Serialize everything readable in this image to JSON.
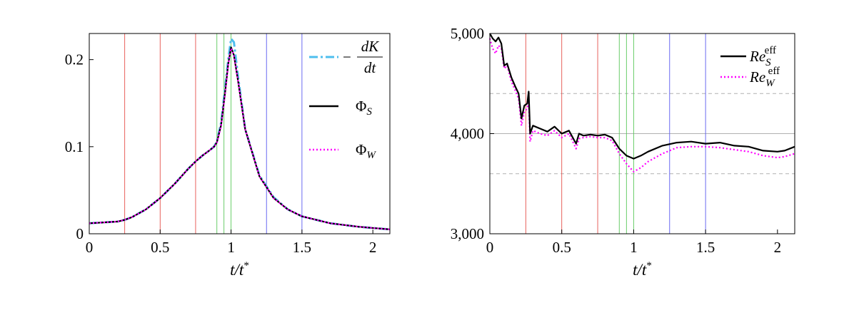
{
  "colors": {
    "dkdt": "#4dbeee",
    "phi_s": "#000000",
    "phi_w": "#ff00ff",
    "re_s": "#000000",
    "re_w": "#ff00ff",
    "vline_red": "#e6504b",
    "vline_green": "#5bc85b",
    "vline_blue": "#5a5af0",
    "ref_line": "#b0b0b0"
  },
  "chart_data": [
    {
      "type": "line",
      "xlabel": "t/t*",
      "xlim": [
        0,
        2.12
      ],
      "ylim": [
        0,
        0.23
      ],
      "xticks": [
        0,
        0.5,
        1,
        1.5,
        2
      ],
      "xtick_labels": [
        "0",
        "0.5",
        "1",
        "1.5",
        "2"
      ],
      "yticks": [
        0,
        0.1,
        0.2
      ],
      "ytick_labels": [
        "0",
        "0.1",
        "0.2"
      ],
      "legend_position": "top-right",
      "vertical_lines": {
        "red": [
          0.25,
          0.5,
          0.75
        ],
        "green": [
          0.9,
          0.95,
          1.0
        ],
        "blue": [
          1.25,
          1.5,
          2.12
        ]
      },
      "x": [
        0,
        0.1,
        0.2,
        0.25,
        0.3,
        0.4,
        0.5,
        0.6,
        0.7,
        0.75,
        0.8,
        0.85,
        0.88,
        0.9,
        0.93,
        0.96,
        0.98,
        1.0,
        1.02,
        1.05,
        1.1,
        1.2,
        1.3,
        1.4,
        1.5,
        1.7,
        1.9,
        2.12
      ],
      "series": [
        {
          "name": "−dK/dt",
          "legend_main": "−",
          "legend_num": "dK",
          "legend_den": "dt",
          "style": "dash-dot",
          "values": [
            0.012,
            0.013,
            0.014,
            0.016,
            0.019,
            0.028,
            0.041,
            0.057,
            0.075,
            0.083,
            0.09,
            0.096,
            0.1,
            0.106,
            0.128,
            0.17,
            0.2,
            0.224,
            0.22,
            0.18,
            0.12,
            0.067,
            0.042,
            0.028,
            0.02,
            0.012,
            0.008,
            0.005
          ]
        },
        {
          "name": "ΦS",
          "legend_main": "Φ",
          "legend_sub": "S",
          "style": "solid",
          "values": [
            0.012,
            0.013,
            0.014,
            0.016,
            0.019,
            0.028,
            0.041,
            0.057,
            0.075,
            0.083,
            0.09,
            0.096,
            0.1,
            0.105,
            0.125,
            0.165,
            0.195,
            0.214,
            0.205,
            0.175,
            0.12,
            0.066,
            0.041,
            0.028,
            0.02,
            0.012,
            0.008,
            0.005
          ]
        },
        {
          "name": "ΦW",
          "legend_main": "Φ",
          "legend_sub": "W",
          "style": "dotted",
          "values": [
            0.012,
            0.013,
            0.014,
            0.016,
            0.019,
            0.028,
            0.041,
            0.057,
            0.075,
            0.083,
            0.09,
            0.096,
            0.1,
            0.104,
            0.124,
            0.163,
            0.194,
            0.213,
            0.205,
            0.175,
            0.12,
            0.066,
            0.041,
            0.028,
            0.02,
            0.012,
            0.008,
            0.005
          ]
        }
      ]
    },
    {
      "type": "line",
      "xlabel": "t/t*",
      "xlim": [
        0,
        2.12
      ],
      "ylim": [
        3000,
        5000
      ],
      "xticks": [
        0,
        0.5,
        1,
        1.5,
        2
      ],
      "xtick_labels": [
        "0",
        "0.5",
        "1",
        "1.5",
        "2"
      ],
      "yticks": [
        3000,
        4000,
        5000
      ],
      "ytick_labels": [
        "3,000",
        "4,000",
        "5,000"
      ],
      "legend_position": "top-right",
      "reference_lines": {
        "solid": [
          4000
        ],
        "dashed": [
          4400,
          3600
        ]
      },
      "vertical_lines": {
        "red": [
          0.25,
          0.5,
          0.75
        ],
        "green": [
          0.9,
          0.95,
          1.0
        ],
        "blue": [
          1.25,
          1.5
        ]
      },
      "series": [
        {
          "name": "ReSeff",
          "legend_main": "Re",
          "legend_sub": "S",
          "legend_sup": "eff",
          "style": "solid",
          "x": [
            0,
            0.02,
            0.04,
            0.06,
            0.08,
            0.1,
            0.12,
            0.15,
            0.18,
            0.2,
            0.22,
            0.24,
            0.26,
            0.27,
            0.28,
            0.3,
            0.35,
            0.4,
            0.45,
            0.5,
            0.55,
            0.6,
            0.62,
            0.65,
            0.7,
            0.75,
            0.8,
            0.85,
            0.9,
            0.95,
            1.0,
            1.05,
            1.1,
            1.2,
            1.3,
            1.4,
            1.5,
            1.6,
            1.7,
            1.8,
            1.9,
            2.0,
            2.05,
            2.12
          ],
          "values": [
            5000,
            4950,
            4920,
            4960,
            4900,
            4680,
            4700,
            4560,
            4460,
            4400,
            4150,
            4280,
            4300,
            4420,
            4000,
            4080,
            4050,
            4020,
            4070,
            4000,
            4030,
            3900,
            4000,
            3980,
            3990,
            3980,
            3990,
            3960,
            3850,
            3780,
            3750,
            3780,
            3820,
            3880,
            3910,
            3920,
            3900,
            3910,
            3880,
            3870,
            3830,
            3820,
            3830,
            3870
          ]
        },
        {
          "name": "ReWeff",
          "legend_main": "Re",
          "legend_sub": "W",
          "legend_sup": "eff",
          "style": "dotted",
          "x": [
            0,
            0.02,
            0.04,
            0.06,
            0.08,
            0.1,
            0.12,
            0.15,
            0.18,
            0.2,
            0.22,
            0.24,
            0.26,
            0.27,
            0.28,
            0.3,
            0.35,
            0.4,
            0.45,
            0.5,
            0.55,
            0.6,
            0.62,
            0.65,
            0.7,
            0.75,
            0.8,
            0.85,
            0.9,
            0.95,
            1.0,
            1.05,
            1.1,
            1.2,
            1.3,
            1.4,
            1.5,
            1.6,
            1.7,
            1.8,
            1.9,
            2.0,
            2.05,
            2.12
          ],
          "values": [
            4950,
            4850,
            4800,
            4880,
            4850,
            4650,
            4680,
            4520,
            4420,
            4350,
            4080,
            4220,
            4250,
            4330,
            3920,
            4030,
            4000,
            3980,
            4030,
            3960,
            4000,
            3850,
            3950,
            3960,
            3970,
            3960,
            3960,
            3930,
            3800,
            3700,
            3620,
            3660,
            3720,
            3800,
            3860,
            3870,
            3870,
            3860,
            3840,
            3820,
            3780,
            3760,
            3770,
            3800
          ]
        }
      ]
    }
  ]
}
